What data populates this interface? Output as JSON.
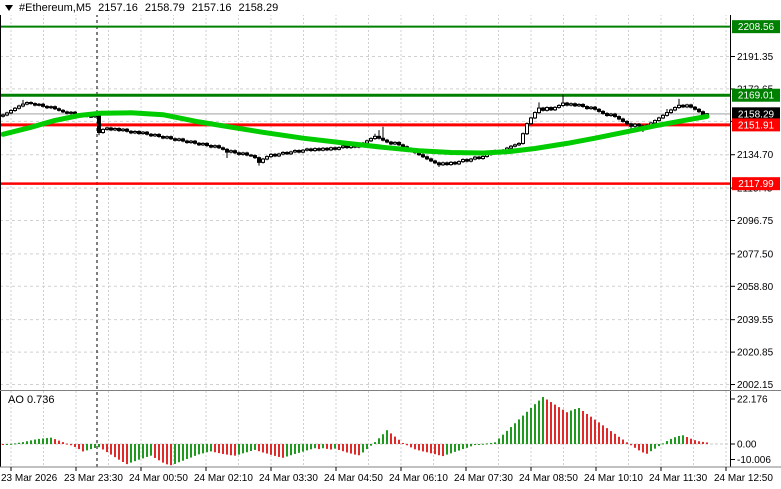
{
  "window": {
    "header": {
      "symbol": "#Ethereum,M5",
      "open": "2157.16",
      "high": "2158.79",
      "low": "2157.16",
      "close": "2158.29"
    }
  },
  "price_axis": {
    "grid_prices": [
      2191.35,
      2172.65,
      2153.95,
      2134.7,
      2115.45,
      2096.75,
      2077.5,
      2058.8,
      2039.55,
      2020.85,
      2002.15
    ],
    "labels": [
      {
        "text": "2191.35",
        "price": 2191.35
      },
      {
        "text": "2172.65",
        "price": 2172.65
      },
      {
        "text": "2134.70",
        "price": 2134.7
      },
      {
        "text": "2115.45",
        "price": 2115.45
      },
      {
        "text": "2096.75",
        "price": 2096.75
      },
      {
        "text": "2077.50",
        "price": 2077.5
      },
      {
        "text": "2058.80",
        "price": 2058.8
      },
      {
        "text": "2039.55",
        "price": 2039.55
      },
      {
        "text": "2020.85",
        "price": 2020.85
      },
      {
        "text": "2002.15",
        "price": 2002.15
      }
    ],
    "badges": [
      {
        "text": "2208.56",
        "price": 2208.56,
        "bg": "#008000"
      },
      {
        "text": "2169.01",
        "price": 2169.01,
        "bg": "#008000"
      },
      {
        "text": "2158.29",
        "price": 2158.29,
        "bg": "#000000"
      },
      {
        "text": "2151.91",
        "price": 2151.91,
        "bg": "#FF0000"
      },
      {
        "text": "2117.99",
        "price": 2117.99,
        "bg": "#FF0000"
      }
    ]
  },
  "time_axis": {
    "labels": [
      "23 Mar 2026",
      "23 Mar 23:30",
      "24 Mar 00:50",
      "24 Mar 02:10",
      "24 Mar 03:30",
      "24 Mar 04:50",
      "24 Mar 06:10",
      "24 Mar 07:30",
      "24 Mar 08:50",
      "24 Mar 10:10",
      "24 Mar 11:30",
      "24 Mar 12:50"
    ]
  },
  "indicator_panel": {
    "label": "AO 0.736",
    "axis_labels": [
      {
        "text": "22.176",
        "value": 22.176
      },
      {
        "text": "0.00",
        "value": 0
      },
      {
        "text": "-10.006",
        "value": -10.006
      }
    ]
  },
  "chart_data": {
    "type": "candlestick",
    "symbol": "#Ethereum",
    "timeframe": "M5",
    "current_price": 2158.29,
    "visible_price_range": [
      2002.15,
      2208.56
    ],
    "levels": [
      {
        "price": 2208.56,
        "color": "#008000",
        "width": 2
      },
      {
        "price": 2169.01,
        "color": "#008000",
        "width": 3
      },
      {
        "price": 2151.91,
        "color": "#FF0000",
        "width": 3
      },
      {
        "price": 2117.99,
        "color": "#FF0000",
        "width": 2.5
      }
    ],
    "current_price_line": {
      "price": 2158.29,
      "color": "#C0C0C0",
      "width": 1.5
    },
    "colors": {
      "bull": "#FFFFFF",
      "bear": "#000000",
      "wick": "#000000",
      "grid": "#D0D0D0",
      "day_separator": "#000000"
    },
    "candles": {
      "first_open": 2156.9,
      "default_wick": 0.7,
      "closes": [
        2157.6,
        2158.8,
        2160.2,
        2161.5,
        2162.8,
        2163.9,
        2164.8,
        2164.2,
        2163.3,
        2163.8,
        2162.6,
        2161.8,
        2162.4,
        2161.2,
        2160.3,
        2159.4,
        2158.6,
        2159.2,
        2158.0,
        2157.2,
        2157.8,
        2156.9,
        2156.6,
        2157.3,
        2147.5,
        2149.3,
        2150.1,
        2149.0,
        2149.8,
        2148.6,
        2149.4,
        2148.2,
        2147.3,
        2148.1,
        2146.9,
        2147.7,
        2146.5,
        2145.6,
        2146.4,
        2145.2,
        2144.3,
        2145.1,
        2143.9,
        2143.0,
        2143.8,
        2142.6,
        2141.7,
        2142.5,
        2141.3,
        2140.4,
        2141.2,
        2140.0,
        2139.1,
        2139.9,
        2138.7,
        2137.8,
        2136.2,
        2137.0,
        2135.8,
        2134.9,
        2135.7,
        2134.5,
        2134.2,
        2133.0,
        2130.3,
        2132.2,
        2133.6,
        2134.9,
        2134.0,
        2135.1,
        2136.0,
        2135.2,
        2136.3,
        2137.1,
        2136.2,
        2137.3,
        2138.0,
        2137.1,
        2138.2,
        2137.3,
        2138.4,
        2137.5,
        2138.7,
        2137.8,
        2138.8,
        2139.7,
        2138.8,
        2139.9,
        2139.1,
        2140.3,
        2141.4,
        2142.7,
        2144.0,
        2145.3,
        2144.2,
        2143.1,
        2142.0,
        2140.9,
        2141.8,
        2140.4,
        2139.3,
        2138.2,
        2137.1,
        2135.9,
        2134.7,
        2133.5,
        2132.3,
        2131.1,
        2130.0,
        2128.9,
        2130.0,
        2129.0,
        2130.3,
        2129.4,
        2130.7,
        2131.9,
        2131.0,
        2132.2,
        2133.3,
        2132.5,
        2133.7,
        2134.8,
        2135.9,
        2137.0,
        2136.1,
        2137.3,
        2138.5,
        2139.6,
        2140.4,
        2141.2,
        2146.8,
        2152.6,
        2155.9,
        2159.0,
        2161.6,
        2160.3,
        2161.9,
        2160.6,
        2162.0,
        2163.1,
        2164.5,
        2163.3,
        2164.1,
        2162.9,
        2163.7,
        2162.5,
        2161.3,
        2162.1,
        2160.9,
        2159.7,
        2158.5,
        2157.3,
        2158.1,
        2156.7,
        2155.3,
        2153.9,
        2152.5,
        2151.1,
        2152.3,
        2151.3,
        2150.4,
        2151.7,
        2153.0,
        2154.4,
        2155.9,
        2157.4,
        2159.0,
        2160.5,
        2161.9,
        2163.2,
        2162.3,
        2163.4,
        2162.1,
        2160.9,
        2159.5,
        2157.16,
        2158.29
      ],
      "wick_overrides": {
        "5": {
          "h": 2166.3
        },
        "24": {
          "l": 2145.9
        },
        "56": {
          "l": 2132.8
        },
        "64": {
          "l": 2128.4
        },
        "93": {
          "h": 2146.8
        },
        "94": {
          "h": 2148.9
        },
        "95": {
          "h": 2150.8
        },
        "109": {
          "l": 2127.6
        },
        "134": {
          "h": 2164.9
        },
        "140": {
          "h": 2169.4
        },
        "157": {
          "l": 2148.9
        },
        "160": {
          "l": 2147.8
        },
        "166": {
          "h": 2161.1
        },
        "169": {
          "h": 2166.9
        },
        "176": {
          "h": 2158.79,
          "l": 2157.16
        }
      }
    },
    "ma": {
      "color": "#00CC00",
      "width": 5,
      "points": [
        [
          0,
          2146.5
        ],
        [
          7,
          2150.5
        ],
        [
          13,
          2154.5
        ],
        [
          19,
          2157.3
        ],
        [
          24,
          2158.6
        ],
        [
          32,
          2158.9
        ],
        [
          40,
          2157.8
        ],
        [
          49,
          2153.6
        ],
        [
          58,
          2150.2
        ],
        [
          65,
          2147.6
        ],
        [
          75,
          2144.2
        ],
        [
          85,
          2141.5
        ],
        [
          95,
          2139.0
        ],
        [
          104,
          2137.0
        ],
        [
          112,
          2136.0
        ],
        [
          120,
          2135.7
        ],
        [
          126,
          2136.4
        ],
        [
          133,
          2138.3
        ],
        [
          141,
          2141.2
        ],
        [
          148,
          2144.2
        ],
        [
          156,
          2148.0
        ],
        [
          163,
          2151.4
        ],
        [
          171,
          2154.8
        ],
        [
          176,
          2156.8
        ]
      ]
    },
    "ao": {
      "current_value": 0.736,
      "max": 22.176,
      "min": -10.006,
      "up_color": "#1F9A1F",
      "down_color": "#E02A2A",
      "values": [
        -0.3,
        -0.1,
        0.1,
        0.3,
        0.6,
        0.9,
        1.3,
        1.7,
        2.1,
        2.4,
        2.6,
        2.8,
        3.0,
        2.3,
        1.6,
        0.9,
        0.2,
        -0.6,
        -1.4,
        -2.4,
        -3.5,
        -3.0,
        -2.4,
        -1.9,
        -1.5,
        -2.6,
        -3.8,
        -5.0,
        -6.2,
        -7.4,
        -8.5,
        -9.5,
        -8.8,
        -8.1,
        -7.4,
        -6.8,
        -6.1,
        -5.5,
        -6.6,
        -7.7,
        -8.8,
        -9.6,
        -10.006,
        -9.4,
        -8.6,
        -7.9,
        -7.1,
        -6.4,
        -5.6,
        -4.9,
        -4.4,
        -3.9,
        -3.5,
        -3.9,
        -4.3,
        -4.7,
        -5.0,
        -5.3,
        -5.5,
        -5.0,
        -4.4,
        -3.9,
        -3.3,
        -2.8,
        -3.4,
        -4.0,
        -4.5,
        -5.1,
        -5.6,
        -6.1,
        -6.5,
        -5.9,
        -5.3,
        -4.7,
        -4.2,
        -3.6,
        -3.0,
        -2.5,
        -2.0,
        -2.4,
        -2.0,
        -2.3,
        -2.6,
        -2.2,
        -2.8,
        -3.4,
        -4.0,
        -4.5,
        -5.0,
        -5.3,
        -4.0,
        -2.4,
        -0.8,
        0.9,
        2.7,
        4.6,
        6.5,
        5.0,
        3.5,
        2.0,
        0.5,
        -0.6,
        -1.6,
        -2.5,
        -3.0,
        -3.5,
        -3.9,
        -4.4,
        -4.8,
        -5.3,
        -5.7,
        -5.0,
        -4.4,
        -3.7,
        -3.1,
        -2.4,
        -1.8,
        -1.1,
        -0.5,
        -0.2,
        0.1,
        0.3,
        0.5,
        0.8,
        2.6,
        4.4,
        6.2,
        8.0,
        9.8,
        11.6,
        13.4,
        15.2,
        17.0,
        18.8,
        20.5,
        22.176,
        21.0,
        19.8,
        18.6,
        17.4,
        16.2,
        15.0,
        15.8,
        16.5,
        17.0,
        15.6,
        14.2,
        12.9,
        11.5,
        10.2,
        8.8,
        7.5,
        6.1,
        4.8,
        3.4,
        2.1,
        0.8,
        -0.6,
        -1.8,
        -3.0,
        -4.0,
        -4.6,
        -3.4,
        -2.2,
        -1.0,
        0.3,
        1.4,
        2.4,
        3.2,
        3.8,
        4.1,
        3.3,
        2.5,
        1.8,
        1.3,
        1.0,
        0.736
      ]
    }
  }
}
